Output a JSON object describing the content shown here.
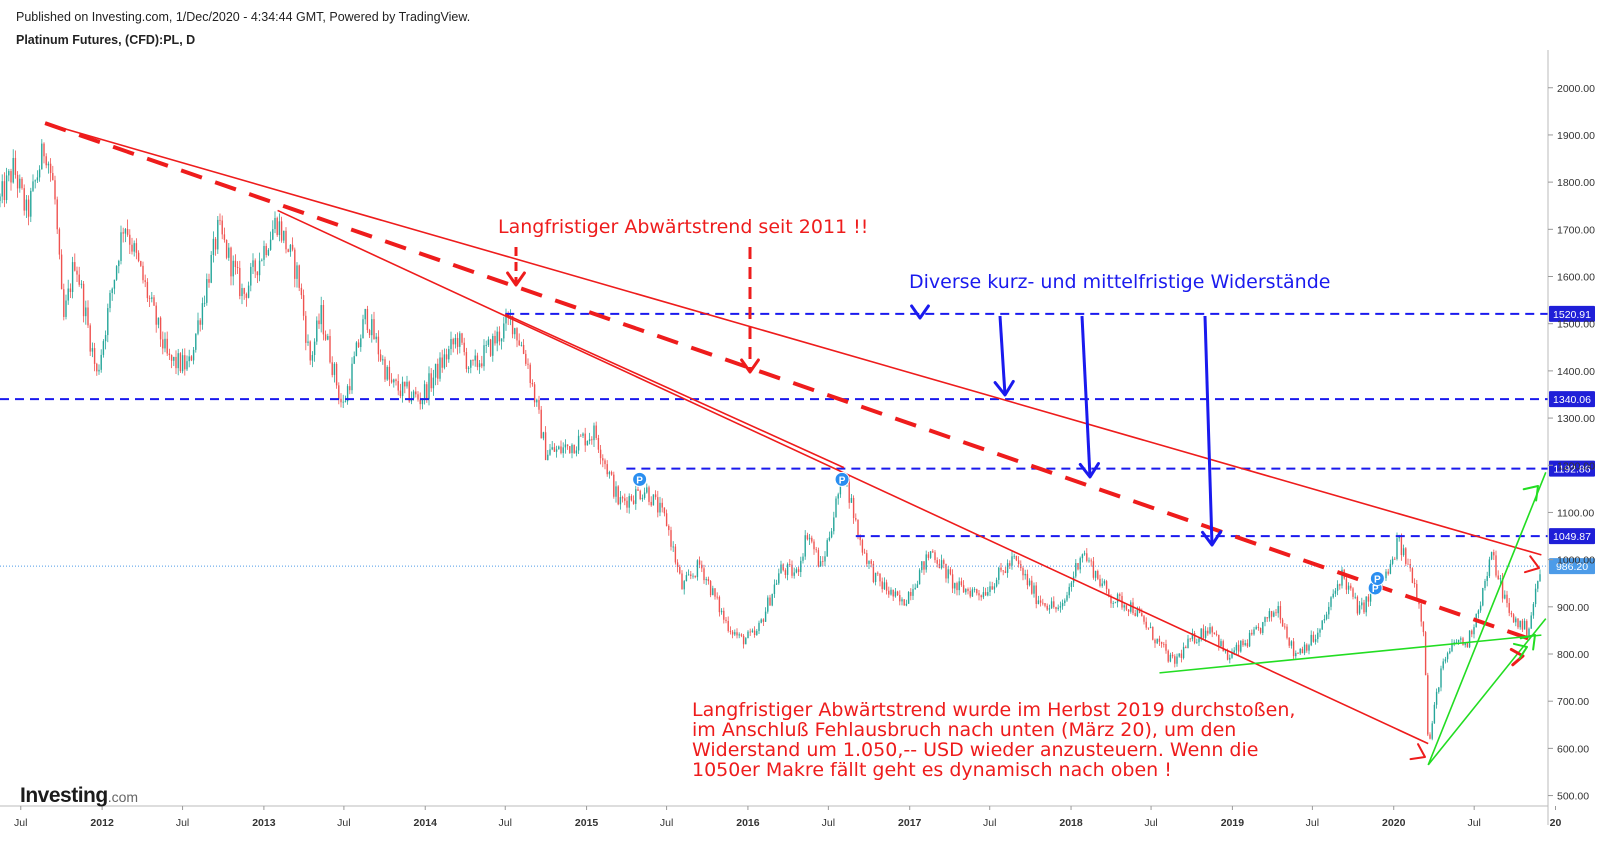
{
  "header": {
    "published": "Published on Investing.com, 1/Dec/2020 - 4:34:44 GMT, Powered by TradingView.",
    "symbol": "Platinum Futures, (CFD):PL, D"
  },
  "logo": {
    "main": "Investing",
    "suffix": ".com"
  },
  "annotations": {
    "top": "Langfristiger Abwärtstrend seit 2011 !!",
    "resistance": "Diverse kurz- und mittelfristige Widerstände",
    "bottom": [
      "Langfristiger Abwärtstrend wurde im Herbst 2019 durchstoßen,",
      "im Anschluß Fehlausbruch nach unten (März 20), um den",
      "Widerstand um 1.050,-- USD wieder anzusteuern. Wenn die",
      "1050er Makre fällt geht es dynamisch nach oben !"
    ]
  },
  "colors": {
    "up": "#26a69a",
    "down": "#ef5350",
    "trend": "#ee1c1c",
    "resistance": "#1a1aee",
    "support": "#22dd22",
    "last_price": "#4c9be8"
  },
  "chart_data": {
    "type": "candlestick",
    "title": "Platinum Futures, (CFD):PL, D",
    "ylim": [
      480,
      2080
    ],
    "xlim": [
      "2011-05-15",
      "2020-12-15"
    ],
    "y_ticks": [
      "500.00",
      "600.00",
      "700.00",
      "800.00",
      "900.00",
      "1000.00",
      "1100.00",
      "1200.00",
      "1300.00",
      "1400.00",
      "1500.00",
      "1600.00",
      "1700.00",
      "1800.00",
      "1900.00",
      "2000.00"
    ],
    "x_ticks": [
      {
        "date": "2011-07-01",
        "label": "Jul"
      },
      {
        "date": "2012-01-01",
        "label": "2012"
      },
      {
        "date": "2012-07-01",
        "label": "Jul"
      },
      {
        "date": "2013-01-01",
        "label": "2013"
      },
      {
        "date": "2013-07-01",
        "label": "Jul"
      },
      {
        "date": "2014-01-01",
        "label": "2014"
      },
      {
        "date": "2014-07-01",
        "label": "Jul"
      },
      {
        "date": "2015-01-01",
        "label": "2015"
      },
      {
        "date": "2015-07-01",
        "label": "Jul"
      },
      {
        "date": "2016-01-01",
        "label": "2016"
      },
      {
        "date": "2016-07-01",
        "label": "Jul"
      },
      {
        "date": "2017-01-01",
        "label": "2017"
      },
      {
        "date": "2017-07-01",
        "label": "Jul"
      },
      {
        "date": "2018-01-01",
        "label": "2018"
      },
      {
        "date": "2018-07-01",
        "label": "Jul"
      },
      {
        "date": "2019-01-01",
        "label": "2019"
      },
      {
        "date": "2019-07-01",
        "label": "Jul"
      },
      {
        "date": "2020-01-01",
        "label": "2020"
      },
      {
        "date": "2020-07-01",
        "label": "Jul"
      },
      {
        "date": "2021-01-01",
        "label": "20"
      }
    ],
    "price_path": [
      [
        "2011-05-15",
        1760
      ],
      [
        "2011-06-15",
        1830
      ],
      [
        "2011-07-15",
        1730
      ],
      [
        "2011-08-25",
        1880
      ],
      [
        "2011-09-15",
        1780
      ],
      [
        "2011-10-05",
        1500
      ],
      [
        "2011-11-01",
        1640
      ],
      [
        "2011-12-20",
        1390
      ],
      [
        "2012-02-20",
        1720
      ],
      [
        "2012-05-30",
        1420
      ],
      [
        "2012-07-15",
        1410
      ],
      [
        "2012-09-20",
        1700
      ],
      [
        "2012-11-15",
        1560
      ],
      [
        "2013-01-30",
        1720
      ],
      [
        "2013-03-20",
        1600
      ],
      [
        "2013-04-15",
        1420
      ],
      [
        "2013-05-10",
        1520
      ],
      [
        "2013-06-28",
        1320
      ],
      [
        "2013-08-20",
        1520
      ],
      [
        "2013-10-15",
        1370
      ],
      [
        "2013-12-20",
        1340
      ],
      [
        "2014-03-15",
        1470
      ],
      [
        "2014-04-15",
        1400
      ],
      [
        "2014-07-15",
        1510
      ],
      [
        "2014-08-20",
        1420
      ],
      [
        "2014-09-30",
        1230
      ],
      [
        "2014-10-30",
        1230
      ],
      [
        "2015-01-20",
        1270
      ],
      [
        "2015-03-15",
        1120
      ],
      [
        "2015-05-15",
        1150
      ],
      [
        "2015-07-01",
        1080
      ],
      [
        "2015-08-05",
        940
      ],
      [
        "2015-09-15",
        990
      ],
      [
        "2015-11-10",
        870
      ],
      [
        "2015-12-15",
        830
      ],
      [
        "2016-01-20",
        840
      ],
      [
        "2016-03-15",
        980
      ],
      [
        "2016-04-20",
        970
      ],
      [
        "2016-05-15",
        1060
      ],
      [
        "2016-06-15",
        980
      ],
      [
        "2016-08-05",
        1190
      ],
      [
        "2016-09-10",
        1040
      ],
      [
        "2016-10-15",
        960
      ],
      [
        "2016-12-15",
        905
      ],
      [
        "2017-02-20",
        1020
      ],
      [
        "2017-04-15",
        940
      ],
      [
        "2017-06-15",
        930
      ],
      [
        "2017-08-25",
        1000
      ],
      [
        "2017-10-15",
        920
      ],
      [
        "2017-12-10",
        890
      ],
      [
        "2018-01-25",
        1020
      ],
      [
        "2018-03-30",
        920
      ],
      [
        "2018-05-20",
        900
      ],
      [
        "2018-07-20",
        820
      ],
      [
        "2018-08-20",
        780
      ],
      [
        "2018-10-01",
        830
      ],
      [
        "2018-11-15",
        860
      ],
      [
        "2018-12-20",
        790
      ],
      [
        "2019-02-20",
        840
      ],
      [
        "2019-04-15",
        900
      ],
      [
        "2019-05-20",
        800
      ],
      [
        "2019-07-15",
        840
      ],
      [
        "2019-09-05",
        970
      ],
      [
        "2019-10-15",
        890
      ],
      [
        "2019-12-25",
        980
      ],
      [
        "2020-01-10",
        1040
      ],
      [
        "2020-02-15",
        960
      ],
      [
        "2020-03-10",
        850
      ],
      [
        "2020-03-19",
        600
      ],
      [
        "2020-04-15",
        760
      ],
      [
        "2020-05-20",
        830
      ],
      [
        "2020-06-15",
        820
      ],
      [
        "2020-07-20",
        930
      ],
      [
        "2020-08-10",
        1010
      ],
      [
        "2020-09-20",
        880
      ],
      [
        "2020-10-30",
        850
      ],
      [
        "2020-11-30",
        986
      ]
    ],
    "price_levels": [
      {
        "value": 1520.91,
        "label": "1520.91",
        "from": "2014-07-01"
      },
      {
        "value": 1340.06,
        "label": "1340.06",
        "from": "2011-05-15"
      },
      {
        "value": 1192.86,
        "label": "1192.86",
        "from": "2015-04-01"
      },
      {
        "value": 1049.87,
        "label": "1049.87",
        "from": "2016-09-01"
      }
    ],
    "last_price": {
      "value": 986.2,
      "label": "986.20"
    },
    "trend_lines": [
      {
        "style": "solid",
        "from": [
          "2011-08-25",
          1925
        ],
        "to": [
          "2020-11-30",
          1010
        ]
      },
      {
        "style": "solid",
        "from": [
          "2013-02-01",
          1740
        ],
        "to": [
          "2020-03-19",
          610
        ]
      },
      {
        "style": "dashed",
        "from": [
          "2011-08-25",
          1925
        ],
        "to": [
          "2020-11-10",
          830
        ]
      },
      {
        "style": "solid",
        "from": [
          "2014-07-01",
          1520
        ],
        "to": [
          "2016-08-05",
          1195
        ]
      }
    ],
    "support_lines": [
      {
        "from": [
          "2018-07-20",
          760
        ],
        "to": [
          "2020-11-30",
          840
        ]
      },
      {
        "from": [
          "2020-03-19",
          565
        ],
        "to": [
          "2020-12-10",
          1185
        ]
      },
      {
        "from": [
          "2020-03-19",
          565
        ],
        "to": [
          "2020-12-10",
          875
        ]
      }
    ],
    "markers": [
      {
        "date": "2015-05-01",
        "value": 1170,
        "label": "P"
      },
      {
        "date": "2016-08-01",
        "value": 1170,
        "label": "P"
      },
      {
        "date": "2019-11-20",
        "value": 940,
        "label": "P"
      },
      {
        "date": "2019-11-25",
        "value": 960,
        "label": "P"
      }
    ]
  }
}
